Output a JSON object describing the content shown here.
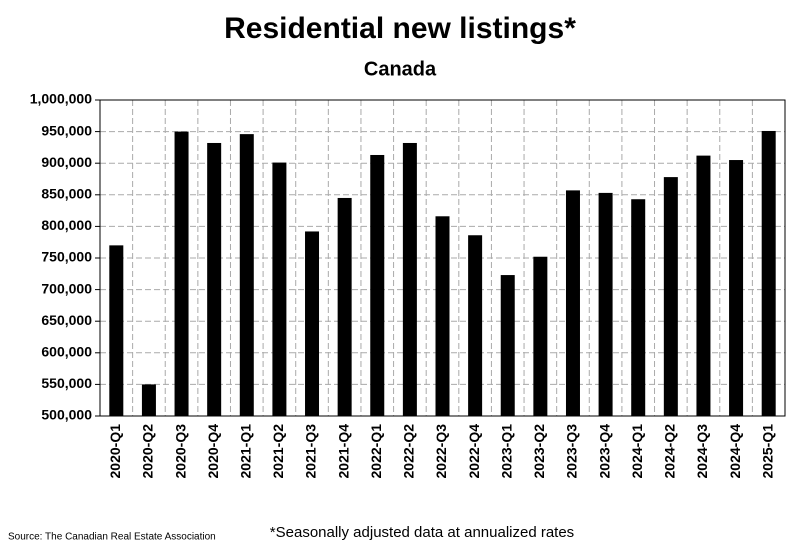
{
  "chart_data": {
    "type": "bar",
    "title": "Residential new listings*",
    "subtitle": "Canada",
    "source": "Source: The Canadian Real Estate Association",
    "footnote": "*Seasonally adjusted data at annualized rates",
    "categories": [
      "2020-Q1",
      "2020-Q2",
      "2020-Q3",
      "2020-Q4",
      "2021-Q1",
      "2021-Q2",
      "2021-Q3",
      "2021-Q4",
      "2022-Q1",
      "2022-Q2",
      "2022-Q3",
      "2022-Q4",
      "2023-Q1",
      "2023-Q2",
      "2023-Q3",
      "2023-Q4",
      "2024-Q1",
      "2024-Q2",
      "2024-Q3",
      "2024-Q4",
      "2025-Q1"
    ],
    "values": [
      770000,
      550000,
      950000,
      932000,
      946000,
      901000,
      792000,
      845000,
      913000,
      932000,
      816000,
      786000,
      723000,
      752000,
      857000,
      853000,
      843000,
      878000,
      912000,
      905000,
      951000
    ],
    "color": "#000000",
    "ylim": [
      500000,
      1000000
    ],
    "yticks": [
      {
        "value": 500000,
        "label": "500,000"
      },
      {
        "value": 550000,
        "label": "550,000"
      },
      {
        "value": 600000,
        "label": "600,000"
      },
      {
        "value": 650000,
        "label": "650,000"
      },
      {
        "value": 700000,
        "label": "700,000"
      },
      {
        "value": 750000,
        "label": "750,000"
      },
      {
        "value": 800000,
        "label": "800,000"
      },
      {
        "value": 850000,
        "label": "850,000"
      },
      {
        "value": 900000,
        "label": "900,000"
      },
      {
        "value": 950000,
        "label": "950,000"
      },
      {
        "value": 1000000,
        "label": "1,000,000"
      }
    ],
    "grid": true
  }
}
